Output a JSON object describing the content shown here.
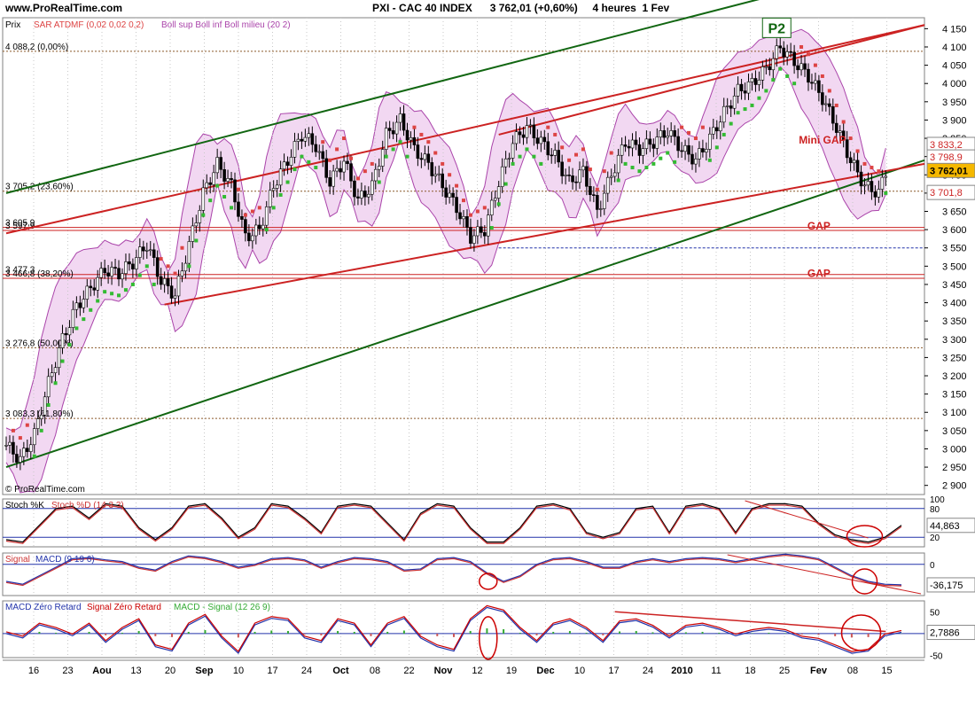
{
  "header": {
    "site": "www.ProRealTime.com",
    "symbol": "PXI - CAC 40 INDEX",
    "last": "3 762,01 (+0,60%)",
    "period": "4 heures  1 Fev"
  },
  "colors": {
    "bull_candle": "#000000",
    "sar_up": "#33bb33",
    "sar_down": "#dd4444",
    "bollinger_fill": "#f2d8f2",
    "bollinger_line": "#aa44aa",
    "channel_red": "#cc2222",
    "channel_green": "#116611",
    "last_price_box": "#f5b800"
  },
  "chart_data": [
    {
      "type": "line",
      "panel": "price",
      "title": "PXI - CAC 40 INDEX",
      "ylabel": "Prix",
      "legend": [
        "SAR ATDMF (0,02 0,02 0,2)",
        "Boll sup Boll inf Boll milieu (20 2)"
      ],
      "ylim": [
        2875,
        4180
      ],
      "y_ticks": [
        "4 150",
        "4 100",
        "4 050",
        "4 000",
        "3 950",
        "3 900",
        "3 850",
        "3 800",
        "3 750",
        "3 700",
        "3 650",
        "3 600",
        "3 550",
        "3 500",
        "3 450",
        "3 400",
        "3 350",
        "3 300",
        "3 250",
        "3 200",
        "3 150",
        "3 100",
        "3 050",
        "3 000",
        "2 950",
        "2 900"
      ],
      "x_ticks": [
        "16",
        "23",
        "Aou",
        "13",
        "20",
        "Sep",
        "10",
        "17",
        "24",
        "Oct",
        "08",
        "22",
        "Nov",
        "12",
        "19",
        "Dec",
        "10",
        "17",
        "24",
        "2010",
        "11",
        "18",
        "25",
        "Fev",
        "08",
        "15"
      ],
      "price_path": [
        [
          0,
          3010
        ],
        [
          4,
          2970
        ],
        [
          8,
          3040
        ],
        [
          12,
          3180
        ],
        [
          16,
          3300
        ],
        [
          20,
          3390
        ],
        [
          24,
          3440
        ],
        [
          28,
          3490
        ],
        [
          32,
          3480
        ],
        [
          36,
          3510
        ],
        [
          40,
          3560
        ],
        [
          44,
          3460
        ],
        [
          48,
          3420
        ],
        [
          52,
          3560
        ],
        [
          56,
          3700
        ],
        [
          60,
          3780
        ],
        [
          64,
          3720
        ],
        [
          68,
          3580
        ],
        [
          72,
          3600
        ],
        [
          76,
          3720
        ],
        [
          80,
          3790
        ],
        [
          84,
          3860
        ],
        [
          88,
          3830
        ],
        [
          92,
          3730
        ],
        [
          96,
          3790
        ],
        [
          100,
          3680
        ],
        [
          104,
          3720
        ],
        [
          108,
          3860
        ],
        [
          112,
          3900
        ],
        [
          116,
          3820
        ],
        [
          120,
          3780
        ],
        [
          124,
          3720
        ],
        [
          128,
          3660
        ],
        [
          132,
          3580
        ],
        [
          136,
          3600
        ],
        [
          140,
          3730
        ],
        [
          144,
          3840
        ],
        [
          148,
          3880
        ],
        [
          152,
          3840
        ],
        [
          156,
          3800
        ],
        [
          160,
          3730
        ],
        [
          164,
          3760
        ],
        [
          168,
          3650
        ],
        [
          172,
          3750
        ],
        [
          176,
          3840
        ],
        [
          180,
          3820
        ],
        [
          184,
          3840
        ],
        [
          188,
          3870
        ],
        [
          192,
          3820
        ],
        [
          196,
          3790
        ],
        [
          200,
          3850
        ],
        [
          204,
          3920
        ],
        [
          208,
          3980
        ],
        [
          212,
          4000
        ],
        [
          216,
          4040
        ],
        [
          220,
          4100
        ],
        [
          224,
          4060
        ],
        [
          228,
          4020
        ],
        [
          232,
          3960
        ],
        [
          236,
          3880
        ],
        [
          240,
          3790
        ],
        [
          244,
          3720
        ],
        [
          248,
          3700
        ],
        [
          250,
          3760
        ]
      ],
      "fib_levels": [
        {
          "label": "4 088,2 (0,00%)",
          "value": 4088.2
        },
        {
          "label": "3 705,2 (23,60%)",
          "value": 3705.2
        },
        {
          "label": "3 605,9",
          "value": 3605.9
        },
        {
          "label": "3 597,9",
          "value": 3597.9
        },
        {
          "label": "3 477,3",
          "value": 3477.3
        },
        {
          "label": "3 466,8 (38,20%)",
          "value": 3466.8
        },
        {
          "label": "3 276,8 (50,00%)",
          "value": 3276.8
        },
        {
          "label": "3 083,3 (61,80%)",
          "value": 3083.3
        }
      ],
      "right_labels": [
        {
          "label": "3 833,2",
          "value": 3833.2
        },
        {
          "label": "3 798,9",
          "value": 3798.9
        },
        {
          "label": "3 762,01",
          "value": 3762.01
        },
        {
          "label": "3 701,8",
          "value": 3701.8
        }
      ],
      "annotations": [
        {
          "text": "P2",
          "x": 219,
          "value": 4150
        },
        {
          "text": "Mini GAP",
          "x": 232,
          "value": 3835
        },
        {
          "text": "GAP",
          "x": 231,
          "value": 3600
        },
        {
          "text": "GAP",
          "x": 231,
          "value": 3470
        }
      ],
      "source": "© ProRealTime.com"
    },
    {
      "type": "line",
      "panel": "stoch",
      "legend": [
        "Stoch %K",
        "Stoch %D (14 3 3)"
      ],
      "ylim": [
        0,
        100
      ],
      "y_ticks": [
        "100",
        "80",
        "20"
      ],
      "last_label": "44,863",
      "last_value": 44.863,
      "series": [
        {
          "name": "Stoch %K",
          "values": [
            15,
            10,
            45,
            80,
            85,
            60,
            90,
            85,
            40,
            15,
            40,
            85,
            90,
            60,
            20,
            40,
            90,
            85,
            60,
            30,
            85,
            90,
            85,
            50,
            15,
            70,
            90,
            85,
            40,
            10,
            10,
            40,
            85,
            90,
            80,
            30,
            20,
            30,
            80,
            85,
            30,
            85,
            90,
            80,
            30,
            80,
            90,
            90,
            85,
            50,
            25,
            15,
            10,
            20,
            45
          ]
        }
      ]
    },
    {
      "type": "line",
      "panel": "macd",
      "legend": [
        "Signal",
        "MACD (9 19 6)"
      ],
      "ylim": [
        -55,
        20
      ],
      "y_ticks": [
        "0"
      ],
      "last_label": "-36,175",
      "last_value": -36.175,
      "series": [
        {
          "name": "MACD",
          "values": [
            -30,
            -35,
            -20,
            -5,
            10,
            12,
            8,
            5,
            -5,
            -10,
            5,
            15,
            12,
            5,
            -5,
            0,
            10,
            12,
            8,
            -5,
            5,
            12,
            10,
            5,
            -10,
            -8,
            10,
            12,
            5,
            -15,
            -30,
            -20,
            0,
            10,
            12,
            5,
            -5,
            -5,
            5,
            10,
            5,
            10,
            12,
            10,
            5,
            10,
            15,
            18,
            15,
            10,
            -5,
            -20,
            -30,
            -35,
            -36
          ]
        }
      ]
    },
    {
      "type": "line",
      "panel": "macd_zero_lag",
      "legend": [
        "MACD Zéro Retard",
        "Signal Zéro Retard",
        "MACD - Signal (12 26 9)"
      ],
      "ylim": [
        -55,
        75
      ],
      "y_ticks": [
        "50",
        "-50"
      ],
      "last_label": "2,7886",
      "last_value": 2.7886,
      "series": [
        {
          "name": "MACD Zéro Retard",
          "values": [
            0,
            -10,
            20,
            10,
            -5,
            20,
            -20,
            10,
            30,
            -30,
            -40,
            20,
            40,
            -10,
            -45,
            20,
            35,
            30,
            -10,
            -20,
            30,
            20,
            -30,
            20,
            35,
            -10,
            -30,
            -40,
            30,
            60,
            50,
            10,
            -20,
            20,
            30,
            10,
            -20,
            25,
            30,
            15,
            -10,
            15,
            20,
            10,
            -5,
            5,
            10,
            5,
            -10,
            -15,
            -30,
            -45,
            -40,
            -5,
            3
          ]
        }
      ]
    }
  ]
}
